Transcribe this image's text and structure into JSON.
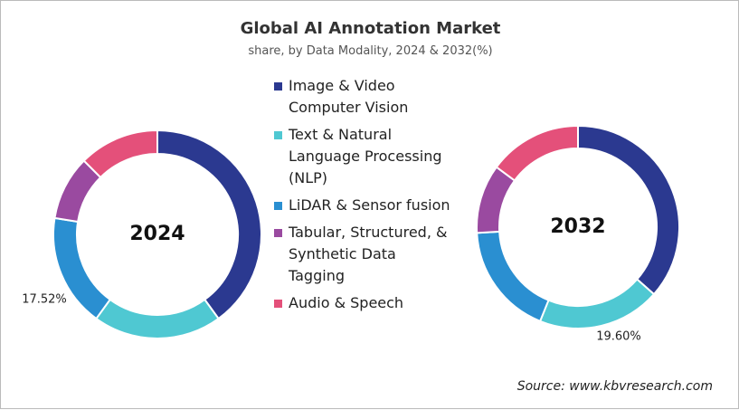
{
  "title": "Global AI Annotation Market",
  "subtitle": "share, by Data Modality, 2024 & 2032(%)",
  "source": "Source: www.kbvresearch.com",
  "chart_data": [
    {
      "type": "donut",
      "center_label": "2024",
      "categories": [
        "Image & Video Computer Vision",
        "Text & Natural Language Processing (NLP)",
        "LiDAR & Sensor fusion",
        "Tabular, Structured, & Synthetic Data Tagging",
        "Audio & Speech"
      ],
      "values": [
        40,
        20,
        17.52,
        10,
        12.48
      ],
      "value_labels": [
        null,
        null,
        "17.52%",
        null,
        null
      ],
      "colors": [
        "#2b3990",
        "#4fc8d2",
        "#2a8fd1",
        "#9a4aa0",
        "#e4507a"
      ]
    },
    {
      "type": "donut",
      "center_label": "2032",
      "categories": [
        "Image & Video Computer Vision",
        "Text & Natural Language Processing (NLP)",
        "LiDAR & Sensor fusion",
        "Tabular, Structured, & Synthetic Data Tagging",
        "Audio & Speech"
      ],
      "values": [
        36.5,
        19.6,
        18,
        11,
        14.9
      ],
      "value_labels": [
        null,
        "19.60%",
        null,
        null,
        null
      ],
      "colors": [
        "#2b3990",
        "#4fc8d2",
        "#2a8fd1",
        "#9a4aa0",
        "#e4507a"
      ]
    }
  ]
}
